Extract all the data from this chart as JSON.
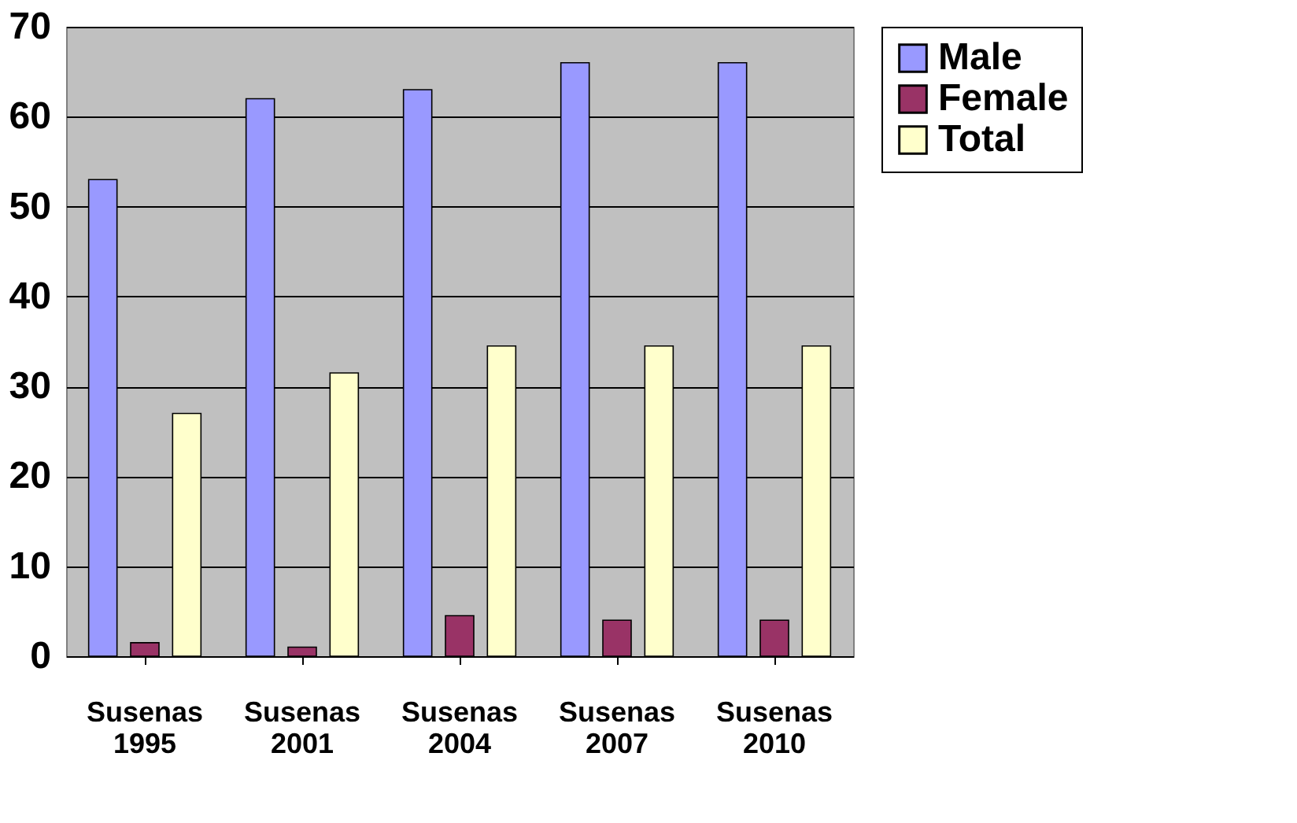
{
  "chart_data": {
    "type": "bar",
    "categories": [
      "Susenas 1995",
      "Susenas 2001",
      "Susenas 2004",
      "Susenas 2007",
      "Susenas 2010"
    ],
    "series": [
      {
        "name": "Male",
        "color": "#9999ff",
        "values": [
          53,
          62,
          63,
          66,
          66
        ]
      },
      {
        "name": "Female",
        "color": "#993366",
        "values": [
          1.5,
          1,
          4.5,
          4,
          4
        ]
      },
      {
        "name": "Total",
        "color": "#ffffcc",
        "values": [
          27,
          31.5,
          34.5,
          34.5,
          34.5
        ]
      }
    ],
    "ylim": [
      0,
      70
    ],
    "yticks": [
      0,
      10,
      20,
      30,
      40,
      50,
      60,
      70
    ],
    "grid": "y",
    "legend": "right"
  }
}
